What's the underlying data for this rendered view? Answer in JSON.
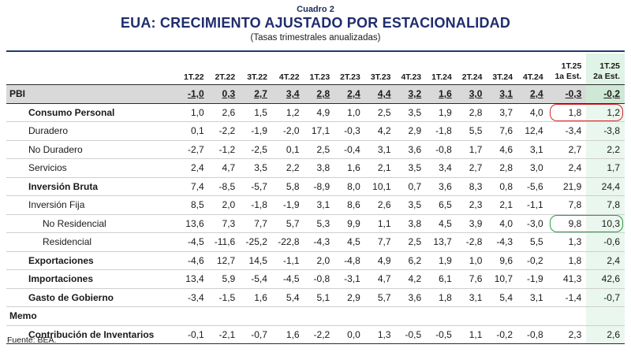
{
  "header": {
    "cuadro": "Cuadro 2",
    "title": "EUA: CRECIMIENTO AJUSTADO POR ESTACIONALIDAD",
    "subtitle": "(Tasas trimestrales anualizadas)"
  },
  "columns": [
    "1T.22",
    "2T.22",
    "3T.22",
    "4T.22",
    "1T.23",
    "2T.23",
    "3T.23",
    "4T.23",
    "1T.24",
    "2T.24",
    "3T.24",
    "4T.24"
  ],
  "est_columns": [
    {
      "line1": "1T.25",
      "line2": "1a Est."
    },
    {
      "line1": "1T.25",
      "line2": "2a Est."
    }
  ],
  "rows": [
    {
      "label": "PBI",
      "style": "pbi",
      "values": [
        "-1,0",
        "0,3",
        "2,7",
        "3,4",
        "2,8",
        "2,4",
        "4,4",
        "3,2",
        "1,6",
        "3,0",
        "3,1",
        "2,4",
        "-0,3",
        "-0,2"
      ]
    },
    {
      "label": "Consumo Personal",
      "style": "i1b",
      "values": [
        "1,0",
        "2,6",
        "1,5",
        "1,2",
        "4,9",
        "1,0",
        "2,5",
        "3,5",
        "1,9",
        "2,8",
        "3,7",
        "4,0",
        "1,8",
        "1,2"
      ]
    },
    {
      "label": "Duradero",
      "style": "i1",
      "values": [
        "0,1",
        "-2,2",
        "-1,9",
        "-2,0",
        "17,1",
        "-0,3",
        "4,2",
        "2,9",
        "-1,8",
        "5,5",
        "7,6",
        "12,4",
        "-3,4",
        "-3,8"
      ]
    },
    {
      "label": "No Duradero",
      "style": "i1",
      "values": [
        "-2,7",
        "-1,2",
        "-2,5",
        "0,1",
        "2,5",
        "-0,4",
        "3,1",
        "3,6",
        "-0,8",
        "1,7",
        "4,6",
        "3,1",
        "2,7",
        "2,2"
      ]
    },
    {
      "label": "Servicios",
      "style": "i1",
      "values": [
        "2,4",
        "4,7",
        "3,5",
        "2,2",
        "3,8",
        "1,6",
        "2,1",
        "3,5",
        "3,4",
        "2,7",
        "2,8",
        "3,0",
        "2,4",
        "1,7"
      ]
    },
    {
      "label": "Inversión Bruta",
      "style": "i1b",
      "values": [
        "7,4",
        "-8,5",
        "-5,7",
        "5,8",
        "-8,9",
        "8,0",
        "10,1",
        "0,7",
        "3,6",
        "8,3",
        "0,8",
        "-5,6",
        "21,9",
        "24,4"
      ]
    },
    {
      "label": "Inversión Fija",
      "style": "i1",
      "values": [
        "8,5",
        "2,0",
        "-1,8",
        "-1,9",
        "3,1",
        "8,6",
        "2,6",
        "3,5",
        "6,5",
        "2,3",
        "2,1",
        "-1,1",
        "7,8",
        "7,8"
      ]
    },
    {
      "label": "No Residencial",
      "style": "i3",
      "values": [
        "13,6",
        "7,3",
        "7,7",
        "5,7",
        "5,3",
        "9,9",
        "1,1",
        "3,8",
        "4,5",
        "3,9",
        "4,0",
        "-3,0",
        "9,8",
        "10,3"
      ]
    },
    {
      "label": "Residencial",
      "style": "i3",
      "values": [
        "-4,5",
        "-11,6",
        "-25,2",
        "-22,8",
        "-4,3",
        "4,5",
        "7,7",
        "2,5",
        "13,7",
        "-2,8",
        "-4,3",
        "5,5",
        "1,3",
        "-0,6"
      ]
    },
    {
      "label": "Exportaciones",
      "style": "i1b",
      "values": [
        "-4,6",
        "12,7",
        "14,5",
        "-1,1",
        "2,0",
        "-4,8",
        "4,9",
        "6,2",
        "1,9",
        "1,0",
        "9,6",
        "-0,2",
        "1,8",
        "2,4"
      ]
    },
    {
      "label": "Importaciones",
      "style": "i1b",
      "values": [
        "13,4",
        "5,9",
        "-5,4",
        "-4,5",
        "-0,8",
        "-3,1",
        "4,7",
        "4,2",
        "6,1",
        "7,6",
        "10,7",
        "-1,9",
        "41,3",
        "42,6"
      ]
    },
    {
      "label": "Gasto de Gobierno",
      "style": "i1b",
      "values": [
        "-3,4",
        "-1,5",
        "1,6",
        "5,4",
        "5,1",
        "2,9",
        "5,7",
        "3,6",
        "1,8",
        "3,1",
        "5,4",
        "3,1",
        "-1,4",
        "-0,7"
      ]
    },
    {
      "label": "Memo",
      "style": "b",
      "values": [
        "",
        "",
        "",
        "",
        "",
        "",
        "",
        "",
        "",
        "",
        "",
        "",
        "",
        ""
      ]
    },
    {
      "label": "Contribución de Inventarios",
      "style": "i1b",
      "values": [
        "-0,1",
        "-2,1",
        "-0,7",
        "1,6",
        "-2,2",
        "0,0",
        "1,3",
        "-0,5",
        "-0,5",
        "1,1",
        "-0,2",
        "-0,8",
        "2,3",
        "2,6"
      ]
    }
  ],
  "highlights": [
    {
      "row": "Consumo Personal",
      "color": "#d6262d"
    },
    {
      "row": "No Residencial",
      "color": "#2e9b45"
    }
  ],
  "source": "Fuente: BEA."
}
